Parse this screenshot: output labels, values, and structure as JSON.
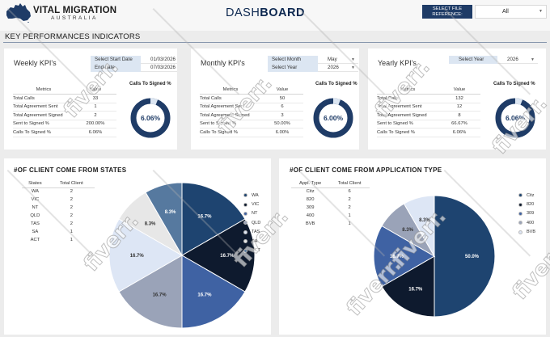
{
  "header": {
    "logo_title": "VITAL MIGRATION",
    "logo_subtitle": "AUSTRALIA",
    "title_light": "DASH",
    "title_bold": "BOARD",
    "file_reference_label": "SELECT FILE REFERENCE:",
    "file_reference_value": "All"
  },
  "kpi_section_title": "KEY PERFORMANCES INDICATORS",
  "metrics_header": {
    "metric": "Metrics",
    "value": "Value"
  },
  "ring_title": "Calls To Signed %",
  "weekly": {
    "title": "Weekly KPI's",
    "filters": [
      {
        "label": "Select Start Date",
        "value": "01/03/2026"
      },
      {
        "label": "End date",
        "value": "07/03/2026"
      }
    ],
    "rows": [
      {
        "metric": "Total Calls",
        "value": "33"
      },
      {
        "metric": "Total Agreement Sent",
        "value": "1"
      },
      {
        "metric": "Total Agreement Signed",
        "value": "2"
      },
      {
        "metric": "Sent to Signed %",
        "value": "200.00%"
      },
      {
        "metric": "Calls To Signed %",
        "value": "6.06%"
      }
    ],
    "ring_value": "6.06%",
    "ring_fraction": 0.0606
  },
  "monthly": {
    "title": "Monthly KPI's",
    "filters": [
      {
        "label": "Select Month",
        "value": "May"
      },
      {
        "label": "Select Year",
        "value": "2026"
      }
    ],
    "rows": [
      {
        "metric": "Total Calls",
        "value": "50"
      },
      {
        "metric": "Total Agreement Sent",
        "value": "6"
      },
      {
        "metric": "Total Agreement Signed",
        "value": "3"
      },
      {
        "metric": "Sent to Signed %",
        "value": "50.00%"
      },
      {
        "metric": "Calls To Signed %",
        "value": "6.00%"
      }
    ],
    "ring_value": "6.00%",
    "ring_fraction": 0.06
  },
  "yearly": {
    "title": "Yearly KPI's",
    "filters": [
      {
        "label": "Select Year",
        "value": "2026"
      }
    ],
    "rows": [
      {
        "metric": "Total Calls",
        "value": "132"
      },
      {
        "metric": "Total Agreement Sent",
        "value": "12"
      },
      {
        "metric": "Total Agreement Signed",
        "value": "8"
      },
      {
        "metric": "Sent to Signed %",
        "value": "66.67%"
      },
      {
        "metric": "Calls To Signed %",
        "value": "6.06%"
      }
    ],
    "ring_value": "6.06%",
    "ring_fraction": 0.0606
  },
  "states_section": {
    "title": "#OF CLIENT COME FROM STATES",
    "col1": "States",
    "col2": "Total Client",
    "rows": [
      {
        "name": "WA",
        "count": "2"
      },
      {
        "name": "VIC",
        "count": "2"
      },
      {
        "name": "NT",
        "count": "2"
      },
      {
        "name": "QLD",
        "count": "2"
      },
      {
        "name": "TAS",
        "count": "2"
      },
      {
        "name": "SA",
        "count": "1"
      },
      {
        "name": "ACT",
        "count": "1"
      }
    ]
  },
  "apps_section": {
    "title": "#OF CLIENT COME FROM APPLICATION TYPE",
    "col1": "Appl. Type",
    "col2": "Total Client",
    "rows": [
      {
        "name": "Citz",
        "count": "6"
      },
      {
        "name": "820",
        "count": "2"
      },
      {
        "name": "309",
        "count": "2"
      },
      {
        "name": "400",
        "count": "1"
      },
      {
        "name": "BVB",
        "count": "1"
      }
    ]
  },
  "watermark_text": "fiverr.",
  "colors": {
    "navy": "#1f3c67",
    "ring_track": "#1f3c67",
    "ring_fill": "#dce6f2",
    "pie": [
      "#1e4470",
      "#0e1a2e",
      "#3f62a3",
      "#9aa3b8",
      "#dde6f5",
      "#e7e7e7",
      "#56799f"
    ]
  },
  "chart_data": [
    {
      "type": "pie",
      "title": "#OF CLIENT COME FROM STATES",
      "categories": [
        "WA",
        "VIC",
        "NT",
        "QLD",
        "TAS",
        "SA",
        "ACT"
      ],
      "values": [
        2,
        2,
        2,
        2,
        2,
        1,
        1
      ],
      "percent_labels": [
        "16.7%",
        "16.7%",
        "16.7%",
        "16.7%",
        "16.7%",
        "8.3%",
        "8.3%"
      ],
      "legend_position": "right"
    },
    {
      "type": "pie",
      "title": "#OF CLIENT COME FROM APPLICATION TYPE",
      "categories": [
        "Citz",
        "820",
        "309",
        "400",
        "BVB"
      ],
      "values": [
        6,
        2,
        2,
        1,
        1
      ],
      "percent_labels": [
        "50.0%",
        "16.7%",
        "16.7%",
        "8.3%",
        "8.3%"
      ],
      "legend_position": "right"
    }
  ]
}
